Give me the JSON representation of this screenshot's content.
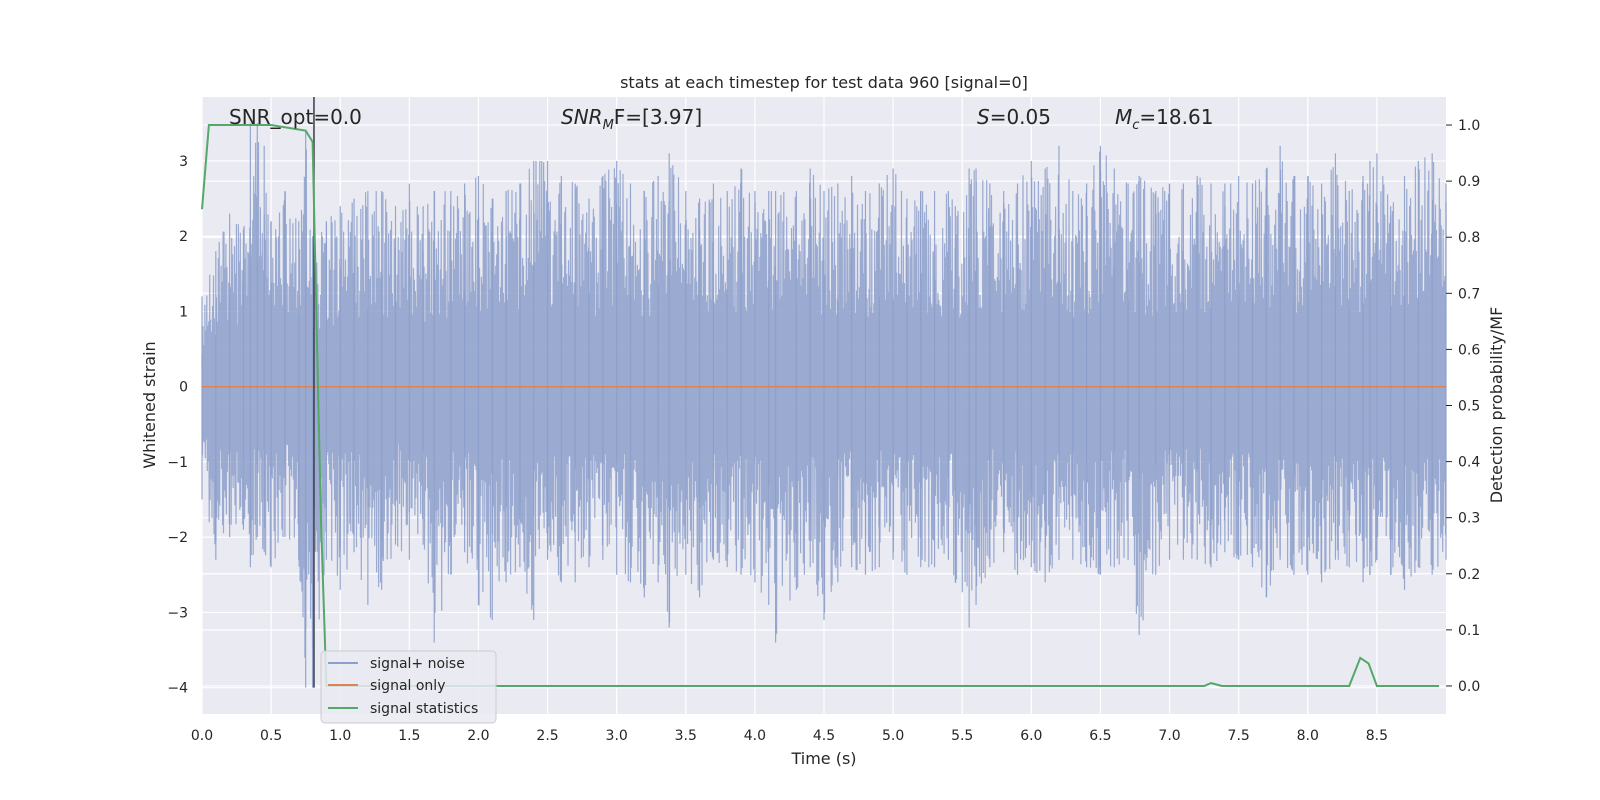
{
  "chart_data": {
    "type": "line",
    "title": "stats at each timestep for test data 960 [signal=0]",
    "xlabel": "Time (s)",
    "ylabel": "Whitened strain",
    "y2label": "Detection probability/MF",
    "xlim": [
      0.0,
      9.0
    ],
    "ylim": [
      -4.35,
      3.85
    ],
    "y2lim": [
      -0.05,
      1.05
    ],
    "xticks": [
      "0.0",
      "0.5",
      "1.0",
      "1.5",
      "2.0",
      "2.5",
      "3.0",
      "3.5",
      "4.0",
      "4.5",
      "5.0",
      "5.5",
      "6.0",
      "6.5",
      "7.0",
      "7.5",
      "8.0",
      "8.5"
    ],
    "xtick_values": [
      0.0,
      0.5,
      1.0,
      1.5,
      2.0,
      2.5,
      3.0,
      3.5,
      4.0,
      4.5,
      5.0,
      5.5,
      6.0,
      6.5,
      7.0,
      7.5,
      8.0,
      8.5
    ],
    "yticks": [
      "−4",
      "−3",
      "−2",
      "−1",
      "0",
      "1",
      "2",
      "3"
    ],
    "ytick_values": [
      -4,
      -3,
      -2,
      -1,
      0,
      1,
      2,
      3
    ],
    "y2ticks": [
      "0.0",
      "0.1",
      "0.2",
      "0.3",
      "0.4",
      "0.5",
      "0.6",
      "0.7",
      "0.8",
      "0.9",
      "1.0"
    ],
    "y2tick_values": [
      0.0,
      0.1,
      0.2,
      0.3,
      0.4,
      0.5,
      0.6,
      0.7,
      0.8,
      0.9,
      1.0
    ],
    "grid": true,
    "legend_placement": "lower-left",
    "annotations": {
      "snr_opt": "SNR_opt=0.0",
      "snr_mf_symbol": "SNR",
      "snr_mf_sub": "M",
      "snr_mf_rest": "F=[3.97]",
      "s_symbol": "S",
      "s_value": "=0.05",
      "mc_symbol": "M",
      "mc_sub": "c",
      "mc_value": "=18.61"
    },
    "vline_x": 0.81,
    "series": [
      {
        "name": "signal+ noise",
        "color": "#8c9fca",
        "axis": "left",
        "envelope_points": [
          [
            0.0,
            -1.5,
            1.2
          ],
          [
            0.1,
            -2.3,
            1.8
          ],
          [
            0.2,
            -2.0,
            2.3
          ],
          [
            0.3,
            -1.9,
            2.1
          ],
          [
            0.35,
            -2.4,
            3.5
          ],
          [
            0.4,
            -2.0,
            3.5
          ],
          [
            0.45,
            -2.2,
            3.2
          ],
          [
            0.5,
            -2.4,
            2.2
          ],
          [
            0.6,
            -2.0,
            2.6
          ],
          [
            0.7,
            -2.3,
            2.2
          ],
          [
            0.75,
            -4.0,
            3.4
          ],
          [
            0.8,
            -4.0,
            2.0
          ],
          [
            0.9,
            -2.3,
            2.2
          ],
          [
            1.0,
            -2.7,
            2.4
          ],
          [
            1.1,
            -2.2,
            2.5
          ],
          [
            1.2,
            -2.9,
            2.6
          ],
          [
            1.3,
            -2.7,
            2.6
          ],
          [
            1.4,
            -2.1,
            2.4
          ],
          [
            1.5,
            -2.3,
            2.7
          ],
          [
            1.6,
            -2.1,
            2.4
          ],
          [
            1.68,
            -3.4,
            2.6
          ],
          [
            1.8,
            -2.5,
            2.6
          ],
          [
            1.9,
            -2.2,
            2.7
          ],
          [
            2.0,
            -2.9,
            2.8
          ],
          [
            2.1,
            -3.1,
            2.5
          ],
          [
            2.2,
            -2.6,
            2.6
          ],
          [
            2.3,
            -2.4,
            2.7
          ],
          [
            2.4,
            -3.1,
            3.0
          ],
          [
            2.5,
            -2.3,
            3.0
          ],
          [
            2.6,
            -2.6,
            2.8
          ],
          [
            2.7,
            -2.6,
            2.7
          ],
          [
            2.8,
            -2.4,
            2.5
          ],
          [
            2.9,
            -2.3,
            2.8
          ],
          [
            3.0,
            -2.5,
            3.0
          ],
          [
            3.1,
            -2.6,
            2.7
          ],
          [
            3.2,
            -2.8,
            2.6
          ],
          [
            3.3,
            -2.6,
            2.8
          ],
          [
            3.38,
            -3.2,
            3.1
          ],
          [
            3.5,
            -2.5,
            2.6
          ],
          [
            3.6,
            -2.8,
            2.5
          ],
          [
            3.7,
            -2.3,
            2.7
          ],
          [
            3.8,
            -2.4,
            2.6
          ],
          [
            3.9,
            -2.5,
            2.9
          ],
          [
            4.0,
            -2.6,
            2.6
          ],
          [
            4.1,
            -2.9,
            2.6
          ],
          [
            4.15,
            -3.4,
            2.6
          ],
          [
            4.3,
            -2.7,
            2.6
          ],
          [
            4.4,
            -2.4,
            2.9
          ],
          [
            4.5,
            -3.1,
            2.6
          ],
          [
            4.6,
            -2.6,
            2.7
          ],
          [
            4.7,
            -2.4,
            2.8
          ],
          [
            4.8,
            -2.5,
            2.6
          ],
          [
            4.9,
            -2.4,
            2.7
          ],
          [
            5.0,
            -2.3,
            2.9
          ],
          [
            5.1,
            -2.5,
            2.5
          ],
          [
            5.2,
            -2.4,
            2.6
          ],
          [
            5.3,
            -2.4,
            2.6
          ],
          [
            5.4,
            -2.3,
            2.6
          ],
          [
            5.45,
            -2.6,
            2.4
          ],
          [
            5.55,
            -3.2,
            2.9
          ],
          [
            5.6,
            -2.9,
            2.9
          ],
          [
            5.7,
            -2.4,
            2.7
          ],
          [
            5.8,
            -2.2,
            2.6
          ],
          [
            5.9,
            -2.5,
            2.7
          ],
          [
            6.0,
            -2.4,
            3.0
          ],
          [
            6.1,
            -2.6,
            2.9
          ],
          [
            6.2,
            -2.3,
            3.2
          ],
          [
            6.3,
            -2.3,
            2.6
          ],
          [
            6.4,
            -2.4,
            2.7
          ],
          [
            6.5,
            -2.5,
            3.2
          ],
          [
            6.6,
            -2.4,
            2.9
          ],
          [
            6.7,
            -2.3,
            2.7
          ],
          [
            6.78,
            -3.3,
            2.8
          ],
          [
            6.9,
            -2.5,
            2.6
          ],
          [
            7.0,
            -2.3,
            2.7
          ],
          [
            7.1,
            -2.3,
            2.7
          ],
          [
            7.2,
            -2.3,
            2.8
          ],
          [
            7.3,
            -2.4,
            2.7
          ],
          [
            7.4,
            -2.2,
            2.7
          ],
          [
            7.5,
            -2.3,
            2.8
          ],
          [
            7.6,
            -2.4,
            2.7
          ],
          [
            7.7,
            -2.8,
            2.9
          ],
          [
            7.8,
            -2.3,
            3.2
          ],
          [
            7.9,
            -2.5,
            2.8
          ],
          [
            8.0,
            -2.5,
            2.8
          ],
          [
            8.1,
            -2.6,
            2.7
          ],
          [
            8.2,
            -2.3,
            3.1
          ],
          [
            8.3,
            -2.4,
            2.6
          ],
          [
            8.4,
            -2.6,
            2.8
          ],
          [
            8.45,
            -2.5,
            3.0
          ],
          [
            8.5,
            -2.3,
            3.1
          ],
          [
            8.6,
            -2.5,
            2.4
          ],
          [
            8.7,
            -2.7,
            2.8
          ],
          [
            8.8,
            -2.4,
            3.0
          ],
          [
            8.9,
            -2.5,
            3.1
          ],
          [
            9.0,
            -2.3,
            2.7
          ]
        ]
      },
      {
        "name": "signal only",
        "color": "#dd8452",
        "axis": "left",
        "x": [
          0.0,
          9.0
        ],
        "y": [
          0.0,
          0.0
        ]
      },
      {
        "name": "signal statistics",
        "color": "#55a868",
        "axis": "right",
        "x": [
          0.0,
          0.05,
          0.1,
          0.5,
          0.75,
          0.8,
          0.86,
          0.9,
          0.95,
          1.0,
          7.25,
          7.3,
          7.38,
          8.3,
          8.38,
          8.44,
          8.5,
          8.95
        ],
        "y": [
          0.85,
          1.0,
          1.0,
          1.0,
          0.99,
          0.97,
          0.3,
          0.0,
          0.0,
          0.0,
          0.0,
          0.005,
          0.0,
          0.0,
          0.05,
          0.04,
          0.0,
          0.0
        ]
      }
    ]
  }
}
